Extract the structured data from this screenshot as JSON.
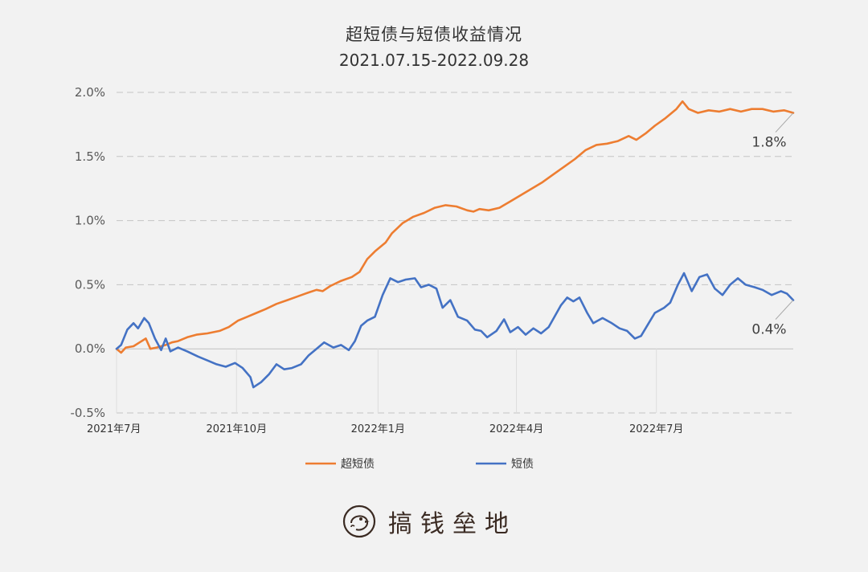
{
  "brand": {
    "name": "搞钱垒地",
    "logo_icon": "bird-logo-icon",
    "color": "#3a2a22"
  },
  "chart_data": {
    "type": "line",
    "title": "超短债与短债收益情况",
    "subtitle": "2021.07.15-2022.09.28",
    "xlabel": "",
    "ylabel": "",
    "x_range": [
      "2021-07-15",
      "2022-09-28"
    ],
    "ylim": [
      -0.5,
      2.0
    ],
    "y_ticks": [
      -0.5,
      0.0,
      0.5,
      1.0,
      1.5,
      2.0
    ],
    "y_tick_labels": [
      "-0.5%",
      "0.0%",
      "0.5%",
      "1.0%",
      "1.5%",
      "2.0%"
    ],
    "x_ticks": [
      "2021-07-01",
      "2021-10-01",
      "2022-01-01",
      "2022-04-01",
      "2022-07-01"
    ],
    "x_tick_labels": [
      "2021年7月",
      "2021年10月",
      "2022年1月",
      "2022年4月",
      "2022年7月"
    ],
    "grid": "horizontal-dashed",
    "legend_position": "bottom",
    "series": [
      {
        "name": "超短债",
        "color": "#ed7d31",
        "end_label": "1.8%",
        "points": [
          [
            "2021-07-15",
            0.0
          ],
          [
            "2021-07-18",
            -0.03
          ],
          [
            "2021-07-21",
            0.01
          ],
          [
            "2021-07-26",
            0.02
          ],
          [
            "2021-07-30",
            0.05
          ],
          [
            "2021-08-03",
            0.08
          ],
          [
            "2021-08-06",
            0.0
          ],
          [
            "2021-08-10",
            0.01
          ],
          [
            "2021-08-16",
            0.03
          ],
          [
            "2021-08-20",
            0.05
          ],
          [
            "2021-08-24",
            0.06
          ],
          [
            "2021-08-30",
            0.09
          ],
          [
            "2021-09-05",
            0.11
          ],
          [
            "2021-09-12",
            0.12
          ],
          [
            "2021-09-20",
            0.14
          ],
          [
            "2021-09-26",
            0.17
          ],
          [
            "2021-10-02",
            0.22
          ],
          [
            "2021-10-08",
            0.25
          ],
          [
            "2021-10-14",
            0.28
          ],
          [
            "2021-10-20",
            0.31
          ],
          [
            "2021-10-27",
            0.35
          ],
          [
            "2021-11-03",
            0.38
          ],
          [
            "2021-11-10",
            0.41
          ],
          [
            "2021-11-17",
            0.44
          ],
          [
            "2021-11-22",
            0.46
          ],
          [
            "2021-11-26",
            0.45
          ],
          [
            "2021-12-01",
            0.49
          ],
          [
            "2021-12-08",
            0.53
          ],
          [
            "2021-12-15",
            0.56
          ],
          [
            "2021-12-20",
            0.6
          ],
          [
            "2021-12-25",
            0.7
          ],
          [
            "2021-12-30",
            0.76
          ],
          [
            "2022-01-06",
            0.83
          ],
          [
            "2022-01-10",
            0.9
          ],
          [
            "2022-01-17",
            0.98
          ],
          [
            "2022-01-24",
            1.03
          ],
          [
            "2022-01-31",
            1.06
          ],
          [
            "2022-02-07",
            1.1
          ],
          [
            "2022-02-14",
            1.12
          ],
          [
            "2022-02-21",
            1.11
          ],
          [
            "2022-02-28",
            1.08
          ],
          [
            "2022-03-04",
            1.07
          ],
          [
            "2022-03-08",
            1.09
          ],
          [
            "2022-03-14",
            1.08
          ],
          [
            "2022-03-21",
            1.1
          ],
          [
            "2022-03-28",
            1.15
          ],
          [
            "2022-04-04",
            1.2
          ],
          [
            "2022-04-11",
            1.25
          ],
          [
            "2022-04-18",
            1.3
          ],
          [
            "2022-04-25",
            1.36
          ],
          [
            "2022-05-02",
            1.42
          ],
          [
            "2022-05-09",
            1.48
          ],
          [
            "2022-05-16",
            1.55
          ],
          [
            "2022-05-23",
            1.59
          ],
          [
            "2022-05-30",
            1.6
          ],
          [
            "2022-06-06",
            1.62
          ],
          [
            "2022-06-13",
            1.66
          ],
          [
            "2022-06-18",
            1.63
          ],
          [
            "2022-06-24",
            1.68
          ],
          [
            "2022-06-30",
            1.74
          ],
          [
            "2022-07-07",
            1.8
          ],
          [
            "2022-07-14",
            1.87
          ],
          [
            "2022-07-18",
            1.93
          ],
          [
            "2022-07-22",
            1.87
          ],
          [
            "2022-07-28",
            1.84
          ],
          [
            "2022-08-04",
            1.86
          ],
          [
            "2022-08-11",
            1.85
          ],
          [
            "2022-08-18",
            1.87
          ],
          [
            "2022-08-25",
            1.85
          ],
          [
            "2022-09-01",
            1.87
          ],
          [
            "2022-09-08",
            1.87
          ],
          [
            "2022-09-15",
            1.85
          ],
          [
            "2022-09-22",
            1.86
          ],
          [
            "2022-09-28",
            1.84
          ]
        ]
      },
      {
        "name": "短债",
        "color": "#4472c4",
        "end_label": "0.4%",
        "points": [
          [
            "2021-07-15",
            0.0
          ],
          [
            "2021-07-18",
            0.03
          ],
          [
            "2021-07-22",
            0.15
          ],
          [
            "2021-07-26",
            0.2
          ],
          [
            "2021-07-29",
            0.16
          ],
          [
            "2021-08-02",
            0.24
          ],
          [
            "2021-08-05",
            0.2
          ],
          [
            "2021-08-09",
            0.08
          ],
          [
            "2021-08-13",
            -0.01
          ],
          [
            "2021-08-16",
            0.08
          ],
          [
            "2021-08-19",
            -0.02
          ],
          [
            "2021-08-24",
            0.01
          ],
          [
            "2021-08-30",
            -0.02
          ],
          [
            "2021-09-06",
            -0.06
          ],
          [
            "2021-09-12",
            -0.09
          ],
          [
            "2021-09-18",
            -0.12
          ],
          [
            "2021-09-24",
            -0.14
          ],
          [
            "2021-09-30",
            -0.11
          ],
          [
            "2021-10-05",
            -0.15
          ],
          [
            "2021-10-10",
            -0.22
          ],
          [
            "2021-10-12",
            -0.3
          ],
          [
            "2021-10-17",
            -0.26
          ],
          [
            "2021-10-22",
            -0.2
          ],
          [
            "2021-10-27",
            -0.12
          ],
          [
            "2021-11-01",
            -0.16
          ],
          [
            "2021-11-06",
            -0.15
          ],
          [
            "2021-11-12",
            -0.12
          ],
          [
            "2021-11-17",
            -0.05
          ],
          [
            "2021-11-22",
            0.0
          ],
          [
            "2021-11-27",
            0.05
          ],
          [
            "2021-12-03",
            0.01
          ],
          [
            "2021-12-08",
            0.03
          ],
          [
            "2021-12-13",
            -0.01
          ],
          [
            "2021-12-17",
            0.06
          ],
          [
            "2021-12-21",
            0.18
          ],
          [
            "2021-12-25",
            0.22
          ],
          [
            "2021-12-30",
            0.25
          ],
          [
            "2022-01-04",
            0.42
          ],
          [
            "2022-01-09",
            0.55
          ],
          [
            "2022-01-14",
            0.52
          ],
          [
            "2022-01-19",
            0.54
          ],
          [
            "2022-01-25",
            0.55
          ],
          [
            "2022-01-29",
            0.48
          ],
          [
            "2022-02-03",
            0.5
          ],
          [
            "2022-02-08",
            0.47
          ],
          [
            "2022-02-12",
            0.32
          ],
          [
            "2022-02-17",
            0.38
          ],
          [
            "2022-02-22",
            0.25
          ],
          [
            "2022-02-28",
            0.22
          ],
          [
            "2022-03-05",
            0.15
          ],
          [
            "2022-03-09",
            0.14
          ],
          [
            "2022-03-13",
            0.09
          ],
          [
            "2022-03-19",
            0.14
          ],
          [
            "2022-03-24",
            0.23
          ],
          [
            "2022-03-28",
            0.13
          ],
          [
            "2022-04-02",
            0.17
          ],
          [
            "2022-04-07",
            0.11
          ],
          [
            "2022-04-12",
            0.16
          ],
          [
            "2022-04-17",
            0.12
          ],
          [
            "2022-04-22",
            0.17
          ],
          [
            "2022-04-30",
            0.34
          ],
          [
            "2022-05-04",
            0.4
          ],
          [
            "2022-05-08",
            0.37
          ],
          [
            "2022-05-12",
            0.4
          ],
          [
            "2022-05-17",
            0.28
          ],
          [
            "2022-05-21",
            0.2
          ],
          [
            "2022-05-27",
            0.24
          ],
          [
            "2022-06-02",
            0.2
          ],
          [
            "2022-06-07",
            0.16
          ],
          [
            "2022-06-12",
            0.14
          ],
          [
            "2022-06-17",
            0.08
          ],
          [
            "2022-06-21",
            0.1
          ],
          [
            "2022-06-26",
            0.2
          ],
          [
            "2022-06-30",
            0.28
          ],
          [
            "2022-07-06",
            0.32
          ],
          [
            "2022-07-10",
            0.36
          ],
          [
            "2022-07-15",
            0.5
          ],
          [
            "2022-07-19",
            0.59
          ],
          [
            "2022-07-24",
            0.45
          ],
          [
            "2022-07-29",
            0.56
          ],
          [
            "2022-08-03",
            0.58
          ],
          [
            "2022-08-08",
            0.47
          ],
          [
            "2022-08-13",
            0.42
          ],
          [
            "2022-08-18",
            0.5
          ],
          [
            "2022-08-23",
            0.55
          ],
          [
            "2022-08-28",
            0.5
          ],
          [
            "2022-09-03",
            0.48
          ],
          [
            "2022-09-08",
            0.46
          ],
          [
            "2022-09-14",
            0.42
          ],
          [
            "2022-09-20",
            0.45
          ],
          [
            "2022-09-24",
            0.43
          ],
          [
            "2022-09-28",
            0.38
          ]
        ]
      }
    ]
  }
}
